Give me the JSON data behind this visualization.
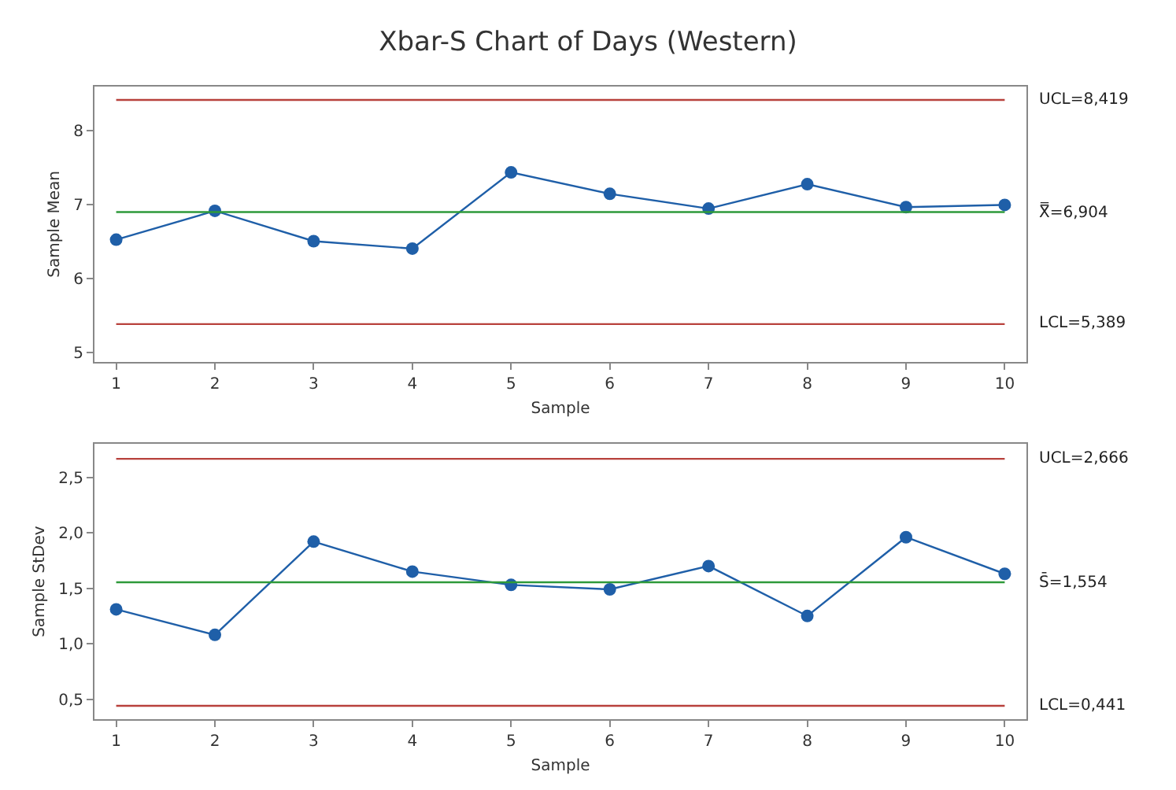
{
  "chart_data": [
    {
      "type": "line",
      "title": "Xbar-S Chart of Days (Western)",
      "xlabel": "Sample",
      "ylabel": "Sample Mean",
      "x": [
        1,
        2,
        3,
        4,
        5,
        6,
        7,
        8,
        9,
        10
      ],
      "series": [
        {
          "color": "#1f5fa8",
          "values": [
            6.53,
            6.92,
            6.51,
            6.41,
            7.44,
            7.15,
            6.95,
            7.28,
            6.97,
            7.0
          ]
        }
      ],
      "xlim": [
        0.78,
        10.22
      ],
      "xticks": [
        1,
        2,
        3,
        4,
        5,
        6,
        7,
        8,
        9,
        10
      ],
      "ylim": [
        4.88,
        8.6
      ],
      "yticks": [
        5,
        6,
        7,
        8
      ],
      "ref_lines": [
        {
          "axis": "y",
          "value": 8.419,
          "label": "UCL=8,419",
          "color": "#b8413c"
        },
        {
          "axis": "y",
          "value": 6.904,
          "label": "X̿=6,904",
          "color": "#2e9a3a"
        },
        {
          "axis": "y",
          "value": 5.389,
          "label": "LCL=5,389",
          "color": "#b8413c"
        }
      ],
      "marker": "circle"
    },
    {
      "type": "line",
      "xlabel": "Sample",
      "ylabel": "Sample StDev",
      "x": [
        1,
        2,
        3,
        4,
        5,
        6,
        7,
        8,
        9,
        10
      ],
      "series": [
        {
          "color": "#1f5fa8",
          "values": [
            1.31,
            1.08,
            1.92,
            1.65,
            1.53,
            1.49,
            1.7,
            1.25,
            1.96,
            1.63
          ]
        }
      ],
      "xlim": [
        0.78,
        10.22
      ],
      "xticks": [
        1,
        2,
        3,
        4,
        5,
        6,
        7,
        8,
        9,
        10
      ],
      "ylim": [
        0.32,
        2.8
      ],
      "yticks": [
        {
          "value": 0.5,
          "label": "0,5"
        },
        {
          "value": 1.0,
          "label": "1,0"
        },
        {
          "value": 1.5,
          "label": "1,5"
        },
        {
          "value": 2.0,
          "label": "2,0"
        },
        {
          "value": 2.5,
          "label": "2,5"
        }
      ],
      "ref_lines": [
        {
          "axis": "y",
          "value": 2.666,
          "label": "UCL=2,666",
          "color": "#b8413c"
        },
        {
          "axis": "y",
          "value": 1.554,
          "label": "S̄=1,554",
          "color": "#2e9a3a"
        },
        {
          "axis": "y",
          "value": 0.441,
          "label": "LCL=0,441",
          "color": "#b8413c"
        }
      ],
      "marker": "circle"
    }
  ]
}
